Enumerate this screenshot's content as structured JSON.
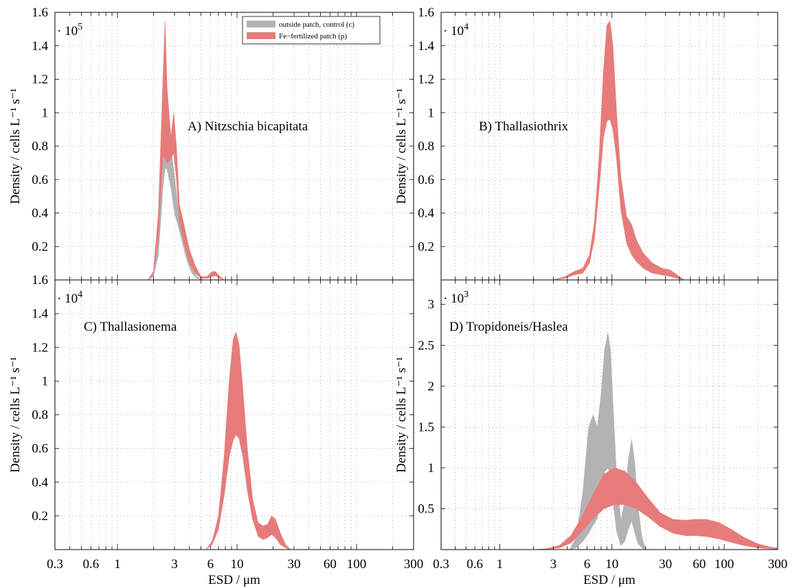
{
  "colors": {
    "control": "#b3b3b3",
    "patch": "#e77b7b",
    "axis": "#000000",
    "grid": "#9a9a9a"
  },
  "legend": {
    "items": [
      {
        "label": "outside patch, control (c)",
        "color": "#b3b3b3"
      },
      {
        "label": "Fe−fertilized patch (p)",
        "color": "#e77b7b"
      }
    ]
  },
  "chart_data": [
    {
      "id": "A",
      "type": "area",
      "title": "A) Nitzschia bicapitata",
      "ylabel": "Density / cells L⁻¹ s⁻¹",
      "xlabel": "",
      "multiplier": "· 10",
      "multiplier_exp": "5",
      "xscale": "log",
      "xlim": [
        0.3,
        300
      ],
      "ylim": [
        0,
        1.6
      ],
      "yticks": [
        0.2,
        0.4,
        0.6,
        0.8,
        1,
        1.2,
        1.4,
        1.6
      ],
      "ytick_labels": [
        "0.2",
        "0.4",
        "0.6",
        "0.8",
        "1",
        "1.2",
        "1.4",
        "1.6"
      ],
      "xticks": [],
      "xtick_labels": [],
      "legend": "top-right",
      "grid": true,
      "series": [
        {
          "name": "outside patch, control (c)",
          "color": "#b3b3b3",
          "x": [
            1.8,
            2.0,
            2.2,
            2.4,
            2.5,
            2.6,
            2.8,
            3.0,
            3.2,
            3.5,
            3.8,
            4.2,
            4.6,
            5.2
          ],
          "upper": [
            0,
            0.03,
            0.25,
            0.8,
            1.03,
            0.95,
            0.78,
            0.62,
            0.45,
            0.35,
            0.22,
            0.08,
            0.02,
            0
          ],
          "lower": [
            0,
            0.02,
            0.15,
            0.55,
            0.67,
            0.66,
            0.55,
            0.4,
            0.33,
            0.22,
            0.12,
            0.04,
            0.01,
            0
          ]
        },
        {
          "name": "Fe−fertilized patch (p)",
          "color": "#e77b7b",
          "x": [
            1.8,
            2.0,
            2.2,
            2.4,
            2.5,
            2.6,
            2.8,
            2.95,
            3.1,
            3.3,
            3.6,
            4.0,
            4.5,
            5.0,
            5.6,
            6.2,
            6.6,
            7.2,
            7.8
          ],
          "upper": [
            0,
            0.05,
            0.4,
            1.2,
            1.55,
            1.15,
            0.85,
            1.0,
            0.82,
            0.45,
            0.33,
            0.18,
            0.08,
            0.02,
            0.02,
            0.05,
            0.05,
            0.02,
            0
          ],
          "lower": [
            0,
            0.03,
            0.25,
            0.75,
            0.72,
            0.7,
            0.72,
            0.76,
            0.62,
            0.35,
            0.22,
            0.1,
            0.04,
            0.01,
            0.01,
            0.02,
            0.025,
            0.01,
            0
          ]
        }
      ]
    },
    {
      "id": "B",
      "type": "area",
      "title": "B) Thallasiothrix",
      "ylabel": "Density / cells L⁻¹ s⁻¹",
      "xlabel": "",
      "multiplier": "· 10",
      "multiplier_exp": "4",
      "xscale": "log",
      "xlim": [
        0.3,
        300
      ],
      "ylim": [
        0,
        1.6
      ],
      "yticks": [
        0.2,
        0.4,
        0.6,
        0.8,
        1,
        1.2,
        1.4,
        1.6
      ],
      "ytick_labels": [
        "0.2",
        "0.4",
        "0.6",
        "0.8",
        "1",
        "1.2",
        "1.4",
        "1.6"
      ],
      "xticks": [],
      "xtick_labels": [],
      "legend": "",
      "grid": true,
      "series": [
        {
          "name": "Fe−fertilized patch (p)",
          "color": "#e77b7b",
          "x": [
            3.0,
            3.8,
            4.6,
            5.5,
            6.3,
            7.0,
            7.7,
            8.4,
            9.0,
            9.6,
            10.2,
            11.0,
            12.0,
            13.5,
            15.0,
            16.5,
            19.0,
            23.0,
            28.0,
            33.0,
            38.0,
            44.0
          ],
          "upper": [
            0,
            0.02,
            0.05,
            0.07,
            0.15,
            0.35,
            0.75,
            1.25,
            1.52,
            1.55,
            1.4,
            1.0,
            0.62,
            0.38,
            0.33,
            0.24,
            0.16,
            0.1,
            0.07,
            0.06,
            0.03,
            0
          ],
          "lower": [
            0,
            0.01,
            0.03,
            0.04,
            0.1,
            0.25,
            0.55,
            0.85,
            0.95,
            0.96,
            0.9,
            0.72,
            0.42,
            0.22,
            0.15,
            0.11,
            0.07,
            0.04,
            0.03,
            0.02,
            0.01,
            0
          ]
        }
      ]
    },
    {
      "id": "C",
      "type": "area",
      "title": "C) Thallasionema",
      "ylabel": "Density / cells L⁻¹ s⁻¹",
      "xlabel": "ESD / μm",
      "multiplier": "· 10",
      "multiplier_exp": "4",
      "xscale": "log",
      "xlim": [
        0.3,
        300
      ],
      "ylim": [
        0,
        1.6
      ],
      "yticks": [
        0.2,
        0.4,
        0.6,
        0.8,
        1,
        1.2,
        1.4,
        1.6
      ],
      "ytick_labels": [
        "0.2",
        "0.4",
        "0.6",
        "0.8",
        "1",
        "1.2",
        "1.4",
        "1.6"
      ],
      "xticks": [
        0.3,
        0.6,
        1,
        3,
        6,
        10,
        30,
        60,
        100,
        300
      ],
      "xtick_labels": [
        "0.3",
        "0.6",
        "1",
        "3",
        "6",
        "10",
        "30",
        "60",
        "100",
        "300"
      ],
      "legend": "",
      "grid": true,
      "series": [
        {
          "name": "Fe−fertilized patch (p)",
          "color": "#e77b7b",
          "x": [
            5.5,
            6.2,
            7.0,
            7.8,
            8.6,
            9.3,
            9.8,
            10.4,
            11.2,
            12.2,
            13.5,
            15.0,
            16.5,
            18.0,
            19.5,
            21.0,
            23.0,
            25.5,
            28.0
          ],
          "upper": [
            0,
            0.05,
            0.2,
            0.55,
            1.0,
            1.25,
            1.29,
            1.22,
            0.95,
            0.6,
            0.3,
            0.16,
            0.14,
            0.15,
            0.2,
            0.18,
            0.1,
            0.03,
            0
          ],
          "lower": [
            0,
            0.03,
            0.12,
            0.32,
            0.55,
            0.65,
            0.68,
            0.66,
            0.55,
            0.35,
            0.18,
            0.08,
            0.06,
            0.07,
            0.09,
            0.07,
            0.03,
            0.01,
            0
          ]
        }
      ]
    },
    {
      "id": "D",
      "type": "area",
      "title": "D) Tropidoneis/Haslea",
      "ylabel": "Density / cells L⁻¹ s⁻¹",
      "xlabel": "ESD / μm",
      "multiplier": "· 10",
      "multiplier_exp": "3",
      "xscale": "log",
      "xlim": [
        0.3,
        300
      ],
      "ylim": [
        0,
        3.3
      ],
      "yticks": [
        0.5,
        1,
        1.5,
        2,
        2.5,
        3
      ],
      "ytick_labels": [
        "0.5",
        "1",
        "1.5",
        "2",
        "2.5",
        "3"
      ],
      "xticks": [
        0.3,
        0.6,
        1,
        3,
        6,
        10,
        30,
        60,
        100,
        300
      ],
      "xtick_labels": [
        "0.3",
        "0.6",
        "1",
        "3",
        "6",
        "10",
        "30",
        "60",
        "100",
        "300"
      ],
      "legend": "",
      "grid": true,
      "series": [
        {
          "name": "outside patch, control (c)",
          "color": "#b3b3b3",
          "x": [
            4.2,
            4.8,
            5.5,
            6.2,
            6.8,
            7.4,
            8.0,
            8.6,
            9.2,
            9.7,
            10.2,
            11.0,
            12.0,
            13.0,
            14.0,
            15.0,
            16.0,
            17.0,
            18.5,
            20.0
          ],
          "upper": [
            0,
            0.15,
            0.7,
            1.5,
            1.65,
            1.5,
            1.9,
            2.45,
            2.65,
            2.45,
            1.8,
            0.9,
            0.35,
            0.6,
            1.1,
            1.35,
            1.05,
            0.55,
            0.15,
            0
          ],
          "lower": [
            0,
            0.02,
            0.1,
            0.2,
            0.3,
            0.38,
            0.6,
            0.95,
            1.0,
            0.9,
            0.6,
            0.22,
            0.05,
            0.1,
            0.25,
            0.35,
            0.2,
            0.08,
            0.02,
            0
          ]
        },
        {
          "name": "Fe−fertilized patch (p)",
          "color": "#e77b7b",
          "x": [
            2.0,
            2.6,
            3.4,
            4.3,
            5.4,
            6.8,
            8.5,
            10.5,
            13.0,
            16.5,
            21.0,
            27.0,
            35.0,
            45.0,
            55.0,
            70.0,
            90.0,
            115.0,
            150.0,
            200.0,
            260.0,
            300.0
          ],
          "upper": [
            0,
            0.01,
            0.05,
            0.17,
            0.4,
            0.68,
            0.92,
            1.0,
            0.96,
            0.82,
            0.63,
            0.45,
            0.37,
            0.36,
            0.37,
            0.37,
            0.33,
            0.25,
            0.15,
            0.07,
            0.03,
            0.02
          ],
          "lower": [
            0,
            0.005,
            0.02,
            0.08,
            0.22,
            0.38,
            0.5,
            0.55,
            0.55,
            0.5,
            0.4,
            0.28,
            0.2,
            0.17,
            0.17,
            0.16,
            0.13,
            0.09,
            0.05,
            0.02,
            0.01,
            0.005
          ]
        }
      ]
    }
  ]
}
